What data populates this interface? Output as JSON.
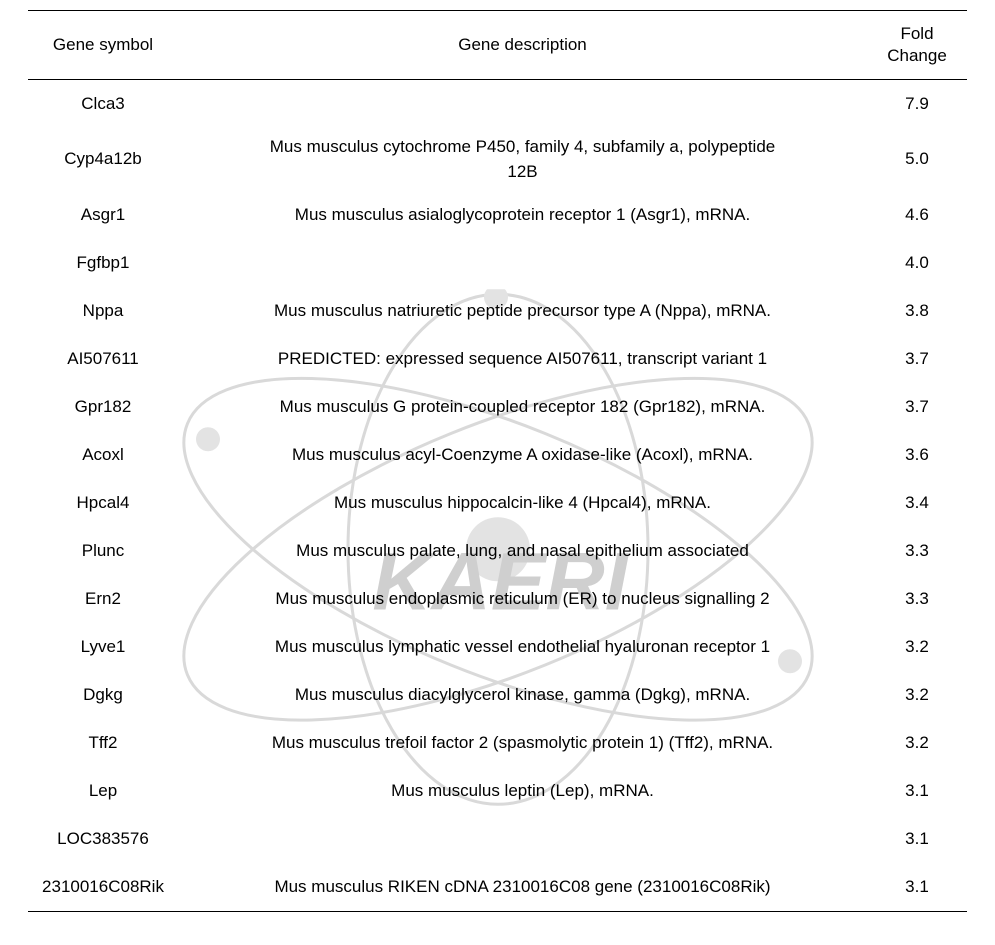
{
  "table": {
    "headers": {
      "gene_symbol": "Gene symbol",
      "gene_description": "Gene description",
      "fold_change": "Fold\nChange"
    },
    "rows": [
      {
        "gene": "Clca3",
        "desc": "",
        "fold": "7.9",
        "tall": false
      },
      {
        "gene": "Cyp4a12b",
        "desc": "Mus musculus cytochrome P450,   family 4, subfamily a, polypeptide\n12B",
        "fold": "5.0",
        "tall": true
      },
      {
        "gene": "Asgr1",
        "desc": "Mus musculus   asialoglycoprotein receptor 1 (Asgr1), mRNA.",
        "fold": "4.6",
        "tall": false
      },
      {
        "gene": "Fgfbp1",
        "desc": "",
        "fold": "4.0",
        "tall": false
      },
      {
        "gene": "Nppa",
        "desc": "Mus musculus natriuretic   peptide precursor type A (Nppa), mRNA.",
        "fold": "3.8",
        "tall": false
      },
      {
        "gene": "AI507611",
        "desc": "PREDICTED: expressed sequence   AI507611, transcript variant 1",
        "fold": "3.7",
        "tall": false
      },
      {
        "gene": "Gpr182",
        "desc": "Mus musculus G protein-coupled   receptor 182 (Gpr182), mRNA.",
        "fold": "3.7",
        "tall": false
      },
      {
        "gene": "Acoxl",
        "desc": "Mus musculus acyl-Coenzyme A   oxidase-like (Acoxl), mRNA.",
        "fold": "3.6",
        "tall": false
      },
      {
        "gene": "Hpcal4",
        "desc": "Mus musculus hippocalcin-like   4 (Hpcal4), mRNA.",
        "fold": "3.4",
        "tall": false
      },
      {
        "gene": "Plunc",
        "desc": "Mus musculus palate, lung, and   nasal epithelium associated",
        "fold": "3.3",
        "tall": false
      },
      {
        "gene": "Ern2",
        "desc": "Mus musculus endoplasmic   reticulum (ER) to nucleus signalling 2",
        "fold": "3.3",
        "tall": false
      },
      {
        "gene": "Lyve1",
        "desc": "Mus musculus lymphatic vessel   endothelial hyaluronan receptor 1",
        "fold": "3.2",
        "tall": false
      },
      {
        "gene": "Dgkg",
        "desc": "Mus musculus diacylglycerol   kinase, gamma (Dgkg), mRNA.",
        "fold": "3.2",
        "tall": false
      },
      {
        "gene": "Tff2",
        "desc": "Mus musculus trefoil factor 2   (spasmolytic protein 1) (Tff2), mRNA.",
        "fold": "3.2",
        "tall": false
      },
      {
        "gene": "Lep",
        "desc": "Mus musculus leptin (Lep),   mRNA.",
        "fold": "3.1",
        "tall": false
      },
      {
        "gene": "LOC383576",
        "desc": "",
        "fold": "3.1",
        "tall": false
      },
      {
        "gene": "2310016C08Rik",
        "desc": "Mus musculus RIKEN cDNA   2310016C08 gene (2310016C08Rik)",
        "fold": "3.1",
        "tall": false
      }
    ]
  },
  "watermark": {
    "text": "KAERI",
    "stroke_color": "#d9d9d9",
    "text_color": "#cfcfcf",
    "nucleus_fill": "#e3e3e3",
    "stroke_width": 3
  }
}
